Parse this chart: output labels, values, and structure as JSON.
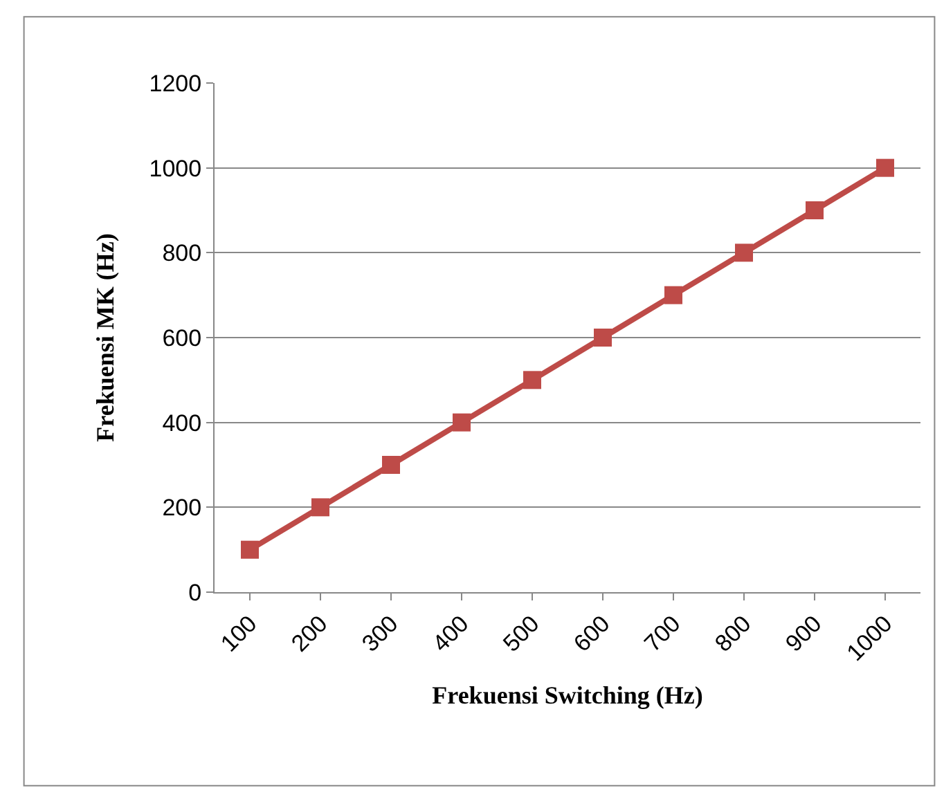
{
  "chart_data": {
    "type": "line",
    "xlabel": "Frekuensi Switching (Hz)",
    "ylabel": "Frekuensi MK (Hz)",
    "categories": [
      "100",
      "200",
      "300",
      "400",
      "500",
      "600",
      "700",
      "800",
      "900",
      "1000"
    ],
    "series": [
      {
        "color": "#be4b48",
        "values": [
          100,
          200,
          300,
          400,
          500,
          600,
          700,
          800,
          900,
          1000
        ]
      }
    ],
    "ylim": [
      0,
      1200
    ],
    "yticks": [
      0,
      200,
      400,
      600,
      800,
      1000,
      1200
    ],
    "grid": "y",
    "marker": "square",
    "line_style": "solid"
  }
}
